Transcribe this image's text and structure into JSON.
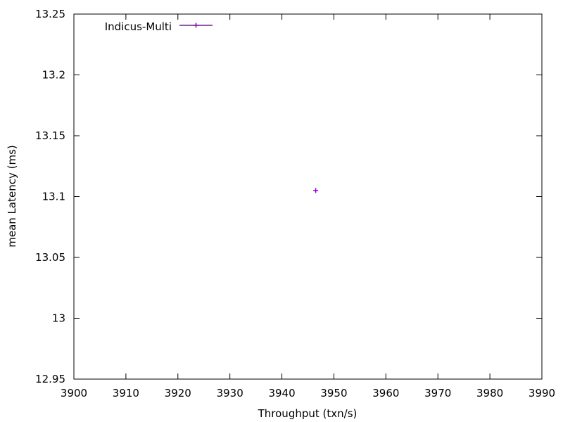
{
  "chart_data": {
    "type": "scatter",
    "title": "",
    "xlabel": "Throughput (txn/s)",
    "ylabel": "mean Latency (ms)",
    "xlim": [
      3900,
      3990
    ],
    "ylim": [
      12.95,
      13.25
    ],
    "xticks": [
      3900,
      3910,
      3920,
      3930,
      3940,
      3950,
      3960,
      3970,
      3980,
      3990
    ],
    "yticks": [
      12.95,
      13,
      13.05,
      13.1,
      13.15,
      13.2,
      13.25
    ],
    "xtick_labels": [
      "3900",
      "3910",
      "3920",
      "3930",
      "3940",
      "3950",
      "3960",
      "3970",
      "3980",
      "3990"
    ],
    "ytick_labels": [
      "12.95",
      "13",
      "13.05",
      "13.1",
      "13.15",
      "13.2",
      "13.25"
    ],
    "grid": false,
    "legend_position": "top-left",
    "series": [
      {
        "name": "Indicus-Multi",
        "color": "#9400d3",
        "marker": "plus",
        "points": [
          {
            "x": 3946.5,
            "y": 13.105
          }
        ]
      }
    ]
  }
}
